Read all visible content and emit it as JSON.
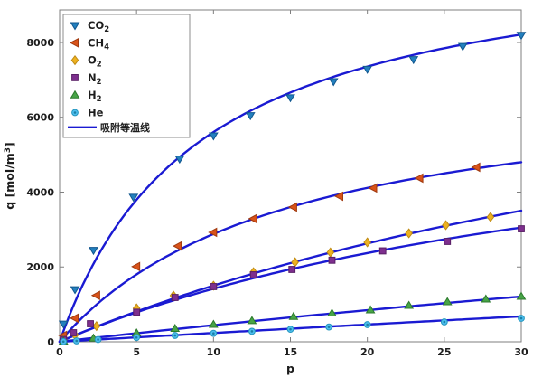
{
  "figure": {
    "kind": "matlab-style-plot",
    "background": "#ffffff",
    "axis_color": "#7f7f7f",
    "text_color": "#1c1c1c"
  },
  "chart_data": {
    "type": "line",
    "title": "",
    "xlabel": "p",
    "ylabel": "q [mol/m³]",
    "ylabel_parts": {
      "pre": "q [mol/m",
      "sup": "3",
      "post": "]"
    },
    "xlim": [
      0,
      30
    ],
    "ylim": [
      0,
      8870
    ],
    "xticks": [
      0,
      5,
      10,
      15,
      20,
      25,
      30
    ],
    "yticks": [
      0,
      2000,
      4000,
      6000,
      8000
    ],
    "grid": false,
    "legend_position": "top-left",
    "line_color": "#1a1ad2",
    "line_legend_label": "吸附等温线",
    "series": [
      {
        "name": "CO2",
        "formula": "CO",
        "subscript": "2",
        "marker": "triangle-down",
        "fill": "#2380be",
        "edge": "#10568e",
        "langmuir": {
          "qm": 10700,
          "b": 0.11
        },
        "points": [
          [
            0.25,
            480
          ],
          [
            1,
            1400
          ],
          [
            2.2,
            2450
          ],
          [
            4.8,
            3870
          ],
          [
            7.8,
            4890
          ],
          [
            10,
            5510
          ],
          [
            12.4,
            6050
          ],
          [
            15,
            6530
          ],
          [
            17.8,
            6960
          ],
          [
            20,
            7290
          ],
          [
            23,
            7550
          ],
          [
            26.2,
            7900
          ],
          [
            30,
            8200
          ]
        ]
      },
      {
        "name": "CH4",
        "formula": "CH",
        "subscript": "4",
        "marker": "triangle-left",
        "fill": "#d95319",
        "edge": "#a03a10",
        "langmuir": {
          "qm": 7200,
          "b": 0.0667
        },
        "points": [
          [
            0.25,
            170
          ],
          [
            1,
            630
          ],
          [
            2.4,
            1240
          ],
          [
            5,
            2010
          ],
          [
            7.7,
            2560
          ],
          [
            10,
            2925
          ],
          [
            12.6,
            3290
          ],
          [
            15.2,
            3600
          ],
          [
            18.2,
            3890
          ],
          [
            20.4,
            4110
          ],
          [
            23.4,
            4375
          ],
          [
            27.1,
            4665
          ]
        ]
      },
      {
        "name": "O2",
        "formula": "O",
        "subscript": "2",
        "marker": "diamond",
        "fill": "#edb120",
        "edge": "#bf8a14",
        "langmuir": {
          "qm": 10500,
          "b": 0.0167
        },
        "points": [
          [
            0.25,
            45
          ],
          [
            1,
            180
          ],
          [
            2.4,
            420
          ],
          [
            5,
            894
          ],
          [
            7.4,
            1233
          ],
          [
            10,
            1499
          ],
          [
            12.6,
            1861
          ],
          [
            15.3,
            2127
          ],
          [
            17.6,
            2390
          ],
          [
            20,
            2659
          ],
          [
            22.7,
            2900
          ],
          [
            25.1,
            3118
          ],
          [
            28,
            3335
          ]
        ]
      },
      {
        "name": "N2",
        "formula": "N",
        "subscript": "2",
        "marker": "square",
        "fill": "#7e2f8e",
        "edge": "#591f66",
        "langmuir": {
          "qm": 7210,
          "b": 0.0245
        },
        "points": [
          [
            0.25,
            60
          ],
          [
            0.9,
            242
          ],
          [
            2,
            483
          ],
          [
            5,
            790
          ],
          [
            7.5,
            1184
          ],
          [
            10,
            1475
          ],
          [
            12.6,
            1789
          ],
          [
            15.1,
            1934
          ],
          [
            17.7,
            2180
          ],
          [
            21,
            2430
          ],
          [
            25.2,
            2683
          ],
          [
            30,
            3020
          ]
        ]
      },
      {
        "name": "H2",
        "formula": "H",
        "subscript": "2",
        "marker": "triangle-up",
        "fill": "#47a447",
        "edge": "#2c7a2c",
        "langmuir": {
          "qm": 8630,
          "b": 0.00543
        },
        "points": [
          [
            0.25,
            12
          ],
          [
            2.2,
            90
          ],
          [
            5,
            230
          ],
          [
            7.5,
            350
          ],
          [
            10,
            460
          ],
          [
            12.5,
            560
          ],
          [
            15.2,
            670
          ],
          [
            17.7,
            760
          ],
          [
            20.2,
            846
          ],
          [
            22.7,
            967
          ],
          [
            25.2,
            1063
          ],
          [
            27.7,
            1136
          ],
          [
            30,
            1209
          ]
        ]
      },
      {
        "name": "He",
        "formula": "He",
        "subscript": "",
        "marker": "circle",
        "fill": "#4dbeee",
        "edge": "#2596be",
        "center_dot": "#1b7fa6",
        "langmuir": {
          "qm": 12000,
          "b": 0.002
        },
        "points": [
          [
            0.25,
            6
          ],
          [
            1.1,
            25
          ],
          [
            2.5,
            60
          ],
          [
            5,
            115
          ],
          [
            7.5,
            170
          ],
          [
            10,
            225
          ],
          [
            12.5,
            280
          ],
          [
            15,
            335
          ],
          [
            17.5,
            395
          ],
          [
            20,
            459
          ],
          [
            25,
            532
          ],
          [
            30,
            628
          ]
        ]
      }
    ]
  }
}
